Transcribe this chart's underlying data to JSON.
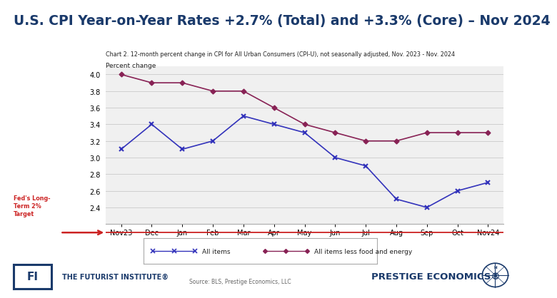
{
  "title": "U.S. CPI Year-on-Year Rates +2.7% (Total) and +3.3% (Core) – Nov 2024",
  "chart_subtitle": "Chart 2. 12-month percent change in CPI for All Urban Consumers (CPI-U), not seasonally adjusted, Nov. 2023 - Nov. 2024",
  "ylabel": "Percent change",
  "x_labels": [
    "Nov23",
    "Dec",
    "Jan",
    "Feb",
    "Mar",
    "Apr",
    "May",
    "Jun",
    "Jul",
    "Aug",
    "Sep",
    "Oct",
    "Nov24"
  ],
  "all_items": [
    3.1,
    3.4,
    3.1,
    3.2,
    3.5,
    3.4,
    3.3,
    3.0,
    2.9,
    2.5,
    2.4,
    2.6,
    2.7
  ],
  "core_items": [
    4.0,
    3.9,
    3.9,
    3.8,
    3.8,
    3.6,
    3.4,
    3.3,
    3.2,
    3.2,
    3.3,
    3.3,
    3.3
  ],
  "ylim": [
    2.2,
    4.1
  ],
  "yticks": [
    2.4,
    2.6,
    2.8,
    3.0,
    3.2,
    3.4,
    3.6,
    3.8,
    4.0
  ],
  "all_items_color": "#3333bb",
  "core_items_color": "#882255",
  "fed_target_color": "#cc2222",
  "fed_label": "Fed's Long-\nTerm 2%\nTarget",
  "legend_all": "All items",
  "legend_core": "All items less food and energy",
  "source_text": "Source: BLS, Prestige Economics, LLC",
  "bg_color": "#ffffff",
  "chart_bg": "#f0f0f0",
  "title_color": "#1a3a6b",
  "title_fontsize": 13.5,
  "grid_color": "#d0d0d0"
}
